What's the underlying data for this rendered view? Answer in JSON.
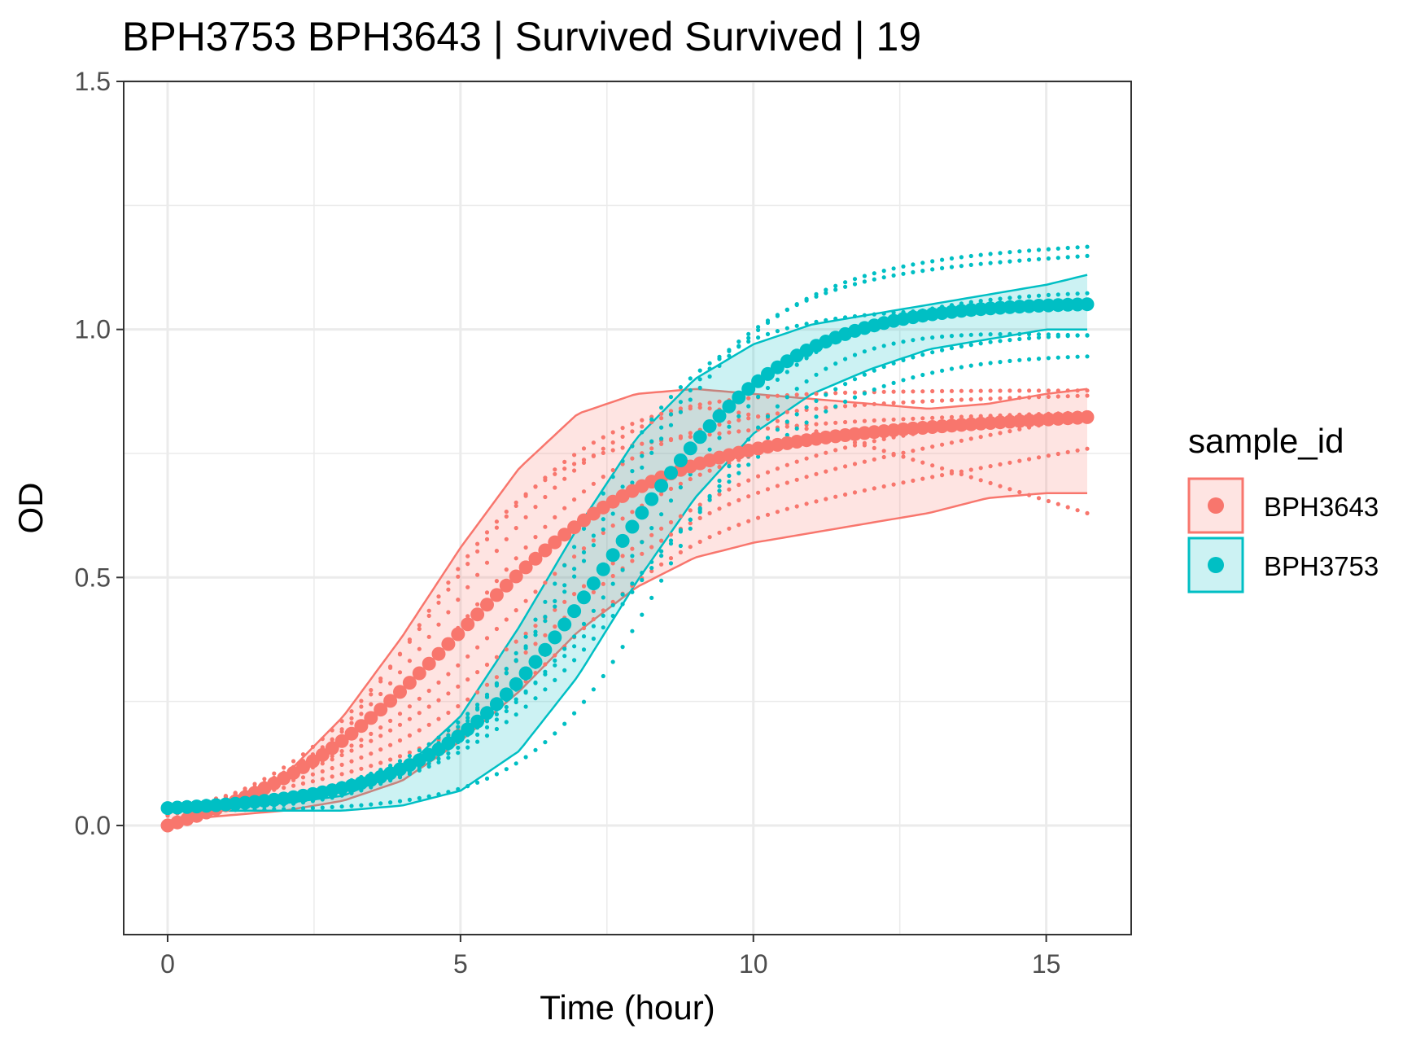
{
  "chart_data": {
    "type": "line",
    "title": "BPH3753 BPH3643 | Survived Survived | 19",
    "xlabel": "Time (hour)",
    "ylabel": "OD",
    "xlim": [
      -0.75,
      16.45
    ],
    "ylim": [
      -0.22,
      1.5
    ],
    "x_ticks": [
      0,
      5,
      10,
      15
    ],
    "x_tick_labels": [
      "0",
      "5",
      "10",
      "15"
    ],
    "y_ticks": [
      0.0,
      0.5,
      1.0,
      1.5
    ],
    "y_tick_labels": [
      "0.0",
      "0.5",
      "1.0",
      "1.5"
    ],
    "grid": true,
    "legend": {
      "title": "sample_id",
      "position": "right",
      "entries": [
        "BPH3643",
        "BPH3753"
      ]
    },
    "series": [
      {
        "name": "BPH3643",
        "color": "#F8766D",
        "mean_model": "logistic",
        "mean_params": {
          "y0": 0.0,
          "A": 0.73,
          "k": 0.62,
          "t0": 5.0,
          "drift": 0.006
        },
        "band_upper": {
          "x": [
            0,
            1,
            2,
            3,
            4,
            5,
            6,
            7,
            8,
            9,
            10,
            11,
            12,
            13,
            14,
            15,
            15.7
          ],
          "y": [
            0.04,
            0.05,
            0.1,
            0.22,
            0.38,
            0.56,
            0.72,
            0.83,
            0.87,
            0.88,
            0.87,
            0.86,
            0.85,
            0.84,
            0.85,
            0.87,
            0.88
          ]
        },
        "band_lower": {
          "x": [
            0,
            1,
            2,
            3,
            4,
            5,
            6,
            7,
            8,
            9,
            10,
            11,
            12,
            13,
            14,
            15,
            15.7
          ],
          "y": [
            0.01,
            0.02,
            0.03,
            0.05,
            0.09,
            0.17,
            0.27,
            0.39,
            0.48,
            0.54,
            0.57,
            0.59,
            0.61,
            0.63,
            0.66,
            0.67,
            0.67
          ]
        },
        "replicates": [
          {
            "y0": 0.01,
            "A": 0.76,
            "k": 0.9,
            "t0": 4.3,
            "drift": 0.004,
            "bump": -0.01,
            "tail": 0.0
          },
          {
            "y0": 0.02,
            "A": 0.83,
            "k": 0.75,
            "t0": 4.6,
            "drift": 0.003,
            "bump": 0.0,
            "tail": -0.02
          },
          {
            "y0": 0.02,
            "A": 0.8,
            "k": 0.7,
            "t0": 5.2,
            "drift": 0.003,
            "bump": 0.0,
            "tail": 0.0
          },
          {
            "y0": 0.02,
            "A": 0.86,
            "k": 0.7,
            "t0": 4.9,
            "drift": 0.0,
            "bump": 0.01,
            "tail": -0.25
          },
          {
            "y0": 0.03,
            "A": 0.72,
            "k": 0.6,
            "t0": 5.8,
            "drift": 0.005,
            "bump": 0.0,
            "tail": 0.0
          },
          {
            "y0": 0.03,
            "A": 0.74,
            "k": 0.5,
            "t0": 6.5,
            "drift": 0.004,
            "bump": 0.0,
            "tail": 0.0
          },
          {
            "y0": 0.03,
            "A": 0.45,
            "k": 0.75,
            "t0": 6.6,
            "drift": 0.022,
            "bump": 0.0,
            "tail": 0.0
          },
          {
            "y0": 0.03,
            "A": 0.4,
            "k": 0.9,
            "t0": 6.9,
            "drift": 0.021,
            "bump": 0.0,
            "tail": 0.0
          }
        ]
      },
      {
        "name": "BPH3753",
        "color": "#00BFC4",
        "mean_model": "logistic",
        "mean_params": {
          "y0": 0.035,
          "A": 1.02,
          "k": 0.68,
          "t0": 7.6,
          "drift": 0.0
        },
        "band_upper": {
          "x": [
            0,
            1,
            2,
            3,
            4,
            5,
            6,
            7,
            8,
            9,
            10,
            11,
            12,
            13,
            14,
            15,
            15.7
          ],
          "y": [
            0.04,
            0.04,
            0.045,
            0.06,
            0.11,
            0.22,
            0.4,
            0.6,
            0.78,
            0.9,
            0.97,
            1.01,
            1.03,
            1.05,
            1.07,
            1.09,
            1.11
          ]
        },
        "band_lower": {
          "x": [
            0,
            1,
            2,
            3,
            4,
            5,
            6,
            7,
            8,
            9,
            10,
            11,
            12,
            13,
            14,
            15,
            15.7
          ],
          "y": [
            0.03,
            0.03,
            0.03,
            0.03,
            0.04,
            0.07,
            0.15,
            0.3,
            0.49,
            0.66,
            0.79,
            0.87,
            0.92,
            0.96,
            0.98,
            1.0,
            1.0
          ]
        },
        "replicates": [
          {
            "y0": 0.03,
            "A": 1.0,
            "k": 0.9,
            "t0": 6.8,
            "drift": 0.0,
            "bump": 0.0,
            "tail": 0.02
          },
          {
            "y0": 0.03,
            "A": 1.08,
            "k": 0.75,
            "t0": 7.2,
            "drift": 0.0,
            "bump": 0.0,
            "tail": 0.04
          },
          {
            "y0": 0.03,
            "A": 1.02,
            "k": 0.7,
            "t0": 7.6,
            "drift": 0.0,
            "bump": 0.0,
            "tail": 0.0
          },
          {
            "y0": 0.03,
            "A": 1.05,
            "k": 0.65,
            "t0": 8.0,
            "drift": 0.0,
            "bump": 0.0,
            "tail": 0.0
          },
          {
            "y0": 0.03,
            "A": 0.99,
            "k": 0.6,
            "t0": 8.3,
            "drift": 0.0,
            "bump": 0.0,
            "tail": -0.02
          },
          {
            "y0": 0.03,
            "A": 1.0,
            "k": 0.85,
            "t0": 8.6,
            "drift": 0.0,
            "bump": 0.0,
            "tail": -0.04
          },
          {
            "y0": 0.03,
            "A": 0.96,
            "k": 0.55,
            "t0": 8.1,
            "drift": 0.0,
            "bump": 0.0,
            "tail": -0.03
          },
          {
            "y0": 0.04,
            "A": 1.1,
            "k": 0.7,
            "t0": 7.4,
            "drift": 0.0,
            "bump": 0.0,
            "tail": 0.03
          }
        ]
      }
    ]
  }
}
